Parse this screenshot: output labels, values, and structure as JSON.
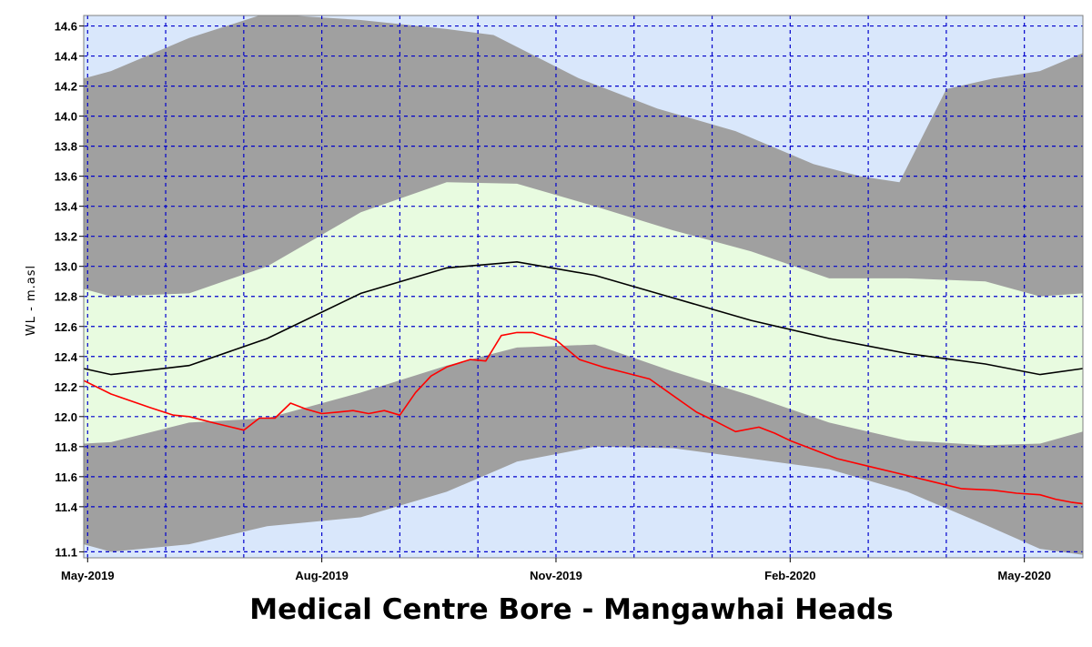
{
  "chart_data": {
    "type": "area",
    "title": "Medical Centre  Bore - Mangawhai Heads",
    "ylabel": "WL - m.asl",
    "xlabel": "",
    "x_ticks": [
      {
        "x": 0,
        "label": "May-2019"
      },
      {
        "x": 3,
        "label": "Aug-2019"
      },
      {
        "x": 6,
        "label": "Nov-2019"
      },
      {
        "x": 9,
        "label": "Feb-2020"
      },
      {
        "x": 12,
        "label": "May-2020"
      }
    ],
    "x_grid": [
      0,
      1,
      2,
      3,
      4,
      5,
      6,
      7,
      8,
      9,
      10,
      11,
      12
    ],
    "xlim": [
      -0.05,
      12.75
    ],
    "ylim": [
      11.06,
      14.67
    ],
    "y_ticks": [
      11.1,
      11.4,
      11.6,
      11.8,
      12.0,
      12.2,
      12.4,
      12.6,
      12.8,
      13.0,
      13.2,
      13.4,
      13.6,
      13.8,
      14.0,
      14.2,
      14.4,
      14.6
    ],
    "grid": true,
    "colors": {
      "background": "#d9e7fb",
      "grid": "#0000cc",
      "outer_band": "#a0a0a0",
      "inner_band": "#e8fbe0",
      "median": "#000000",
      "observed": "#ff0000"
    },
    "series": [
      {
        "role": "max",
        "x": [
          -0.05,
          0.3,
          1.3,
          2.2,
          2.6,
          3.5,
          4.6,
          5.2,
          6.3,
          7.3,
          8.3,
          9.3,
          9.9,
          10.4,
          11.0,
          11.6,
          12.2,
          12.75
        ],
        "y": [
          14.25,
          14.3,
          14.52,
          14.67,
          14.67,
          14.64,
          14.58,
          14.54,
          14.25,
          14.05,
          13.9,
          13.68,
          13.6,
          13.56,
          14.18,
          14.25,
          14.3,
          14.42
        ]
      },
      {
        "role": "p95",
        "x": [
          -0.05,
          0.3,
          1.3,
          2.3,
          3.5,
          4.6,
          5.5,
          6.5,
          7.5,
          8.5,
          9.5,
          10.5,
          11.5,
          12.2,
          12.75
        ],
        "y": [
          12.85,
          12.8,
          12.82,
          13.0,
          13.36,
          13.56,
          13.55,
          13.4,
          13.24,
          13.1,
          12.92,
          12.92,
          12.9,
          12.8,
          12.82
        ]
      },
      {
        "role": "median",
        "x": [
          -0.05,
          0.3,
          1.3,
          2.3,
          3.5,
          4.6,
          5.5,
          6.5,
          7.5,
          8.5,
          9.5,
          10.5,
          11.5,
          12.2,
          12.75
        ],
        "y": [
          12.32,
          12.28,
          12.34,
          12.52,
          12.82,
          12.99,
          13.03,
          12.94,
          12.79,
          12.64,
          12.52,
          12.42,
          12.35,
          12.28,
          12.32
        ]
      },
      {
        "role": "p5",
        "x": [
          -0.05,
          0.3,
          1.3,
          2.3,
          3.5,
          4.6,
          5.5,
          6.5,
          7.5,
          8.5,
          9.5,
          10.5,
          11.5,
          12.2,
          12.75
        ],
        "y": [
          11.82,
          11.83,
          11.96,
          11.99,
          12.16,
          12.34,
          12.46,
          12.48,
          12.3,
          12.14,
          11.96,
          11.84,
          11.81,
          11.82,
          11.9
        ]
      },
      {
        "role": "min",
        "x": [
          -0.05,
          0.3,
          1.3,
          2.3,
          3.5,
          4.6,
          5.5,
          6.5,
          7.5,
          8.5,
          9.5,
          10.5,
          11.5,
          12.2,
          12.75
        ],
        "y": [
          11.15,
          11.1,
          11.15,
          11.27,
          11.33,
          11.5,
          11.7,
          11.8,
          11.79,
          11.72,
          11.65,
          11.5,
          11.28,
          11.12,
          11.08
        ]
      },
      {
        "role": "observed",
        "x": [
          -0.05,
          0.3,
          0.8,
          1.1,
          1.3,
          1.6,
          2.0,
          2.2,
          2.4,
          2.6,
          2.8,
          3.0,
          3.2,
          3.4,
          3.6,
          3.8,
          4.0,
          4.2,
          4.4,
          4.6,
          4.9,
          5.1,
          5.3,
          5.5,
          5.7,
          6.0,
          6.3,
          6.6,
          6.9,
          7.2,
          7.5,
          7.8,
          8.0,
          8.3,
          8.6,
          8.8,
          9.0,
          9.3,
          9.6,
          10.0,
          10.4,
          10.8,
          11.2,
          11.6,
          11.9,
          12.2,
          12.4,
          12.6,
          12.75
        ],
        "y": [
          12.24,
          12.15,
          12.06,
          12.01,
          12.0,
          11.96,
          11.91,
          11.99,
          11.99,
          12.09,
          12.05,
          12.02,
          12.03,
          12.04,
          12.02,
          12.04,
          12.01,
          12.16,
          12.27,
          12.33,
          12.38,
          12.37,
          12.54,
          12.56,
          12.56,
          12.51,
          12.38,
          12.33,
          12.29,
          12.25,
          12.14,
          12.03,
          11.98,
          11.9,
          11.93,
          11.89,
          11.84,
          11.78,
          11.72,
          11.67,
          11.62,
          11.57,
          11.52,
          11.51,
          11.49,
          11.48,
          11.45,
          11.43,
          11.42
        ]
      }
    ]
  }
}
